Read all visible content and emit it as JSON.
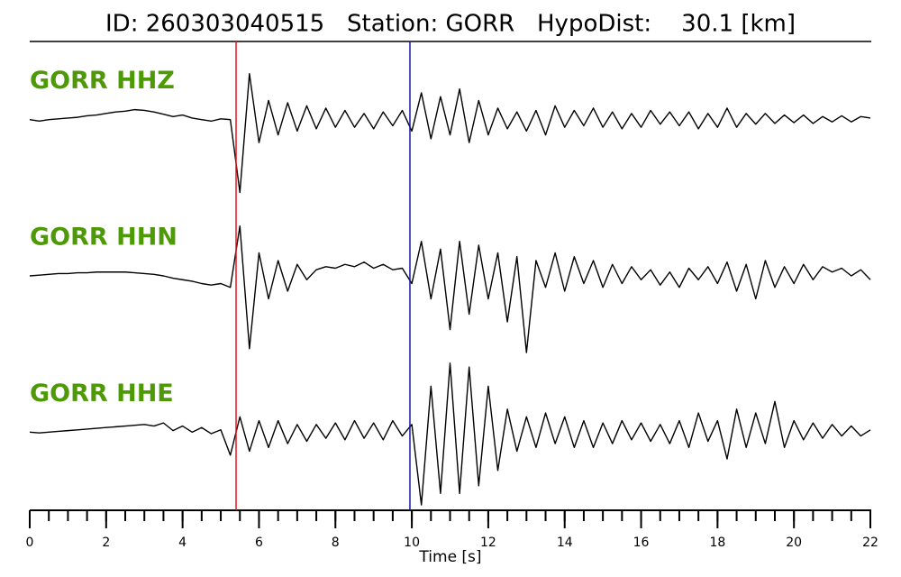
{
  "chart_data": {
    "type": "line",
    "title": "ID: 260303040515   Station: GORR   HypoDist:    30.1 [km]",
    "xlabel": "Time [s]",
    "x": [
      0,
      0.25,
      0.5,
      0.75,
      1,
      1.25,
      1.5,
      1.75,
      2,
      2.25,
      2.5,
      2.75,
      3,
      3.25,
      3.5,
      3.75,
      4,
      4.25,
      4.5,
      4.75,
      5,
      5.25,
      5.5,
      5.75,
      6,
      6.25,
      6.5,
      6.75,
      7,
      7.25,
      7.5,
      7.75,
      8,
      8.25,
      8.5,
      8.75,
      9,
      9.25,
      9.5,
      9.75,
      10,
      10.25,
      10.5,
      10.75,
      11,
      11.25,
      11.5,
      11.75,
      12,
      12.25,
      12.5,
      12.75,
      13,
      13.25,
      13.5,
      13.75,
      14,
      14.25,
      14.5,
      14.75,
      15,
      15.25,
      15.5,
      15.75,
      16,
      16.25,
      16.5,
      16.75,
      17,
      17.25,
      17.5,
      17.75,
      18,
      18.25,
      18.5,
      18.75,
      19,
      19.25,
      19.5,
      19.75,
      20,
      20.25,
      20.5,
      20.75,
      21,
      21.25,
      21.5,
      21.75,
      22
    ],
    "xlim": [
      0,
      22
    ],
    "xticks": [
      0,
      2,
      4,
      6,
      8,
      10,
      12,
      14,
      16,
      18,
      20,
      22
    ],
    "xminorticks": [
      0,
      0.5,
      1,
      1.5,
      2,
      2.5,
      3,
      3.5,
      4,
      4.5,
      5,
      5.5,
      6,
      6.5,
      7,
      7.5,
      8,
      8.5,
      9,
      9.5,
      10,
      10.5,
      11,
      11.5,
      12,
      12.5,
      13,
      13.5,
      14,
      14.5,
      15,
      15.5,
      16,
      16.5,
      17,
      17.5,
      18,
      18.5,
      19,
      19.5,
      20,
      20.5,
      21,
      21.5,
      22
    ],
    "ylim": [
      -1,
      1
    ],
    "label_color": "#4e9a06",
    "markers": [
      {
        "x": 5.4,
        "color": "#e8161b"
      },
      {
        "x": 9.95,
        "color": "#1a1aa8"
      }
    ],
    "series": [
      {
        "name": "GORR HHZ",
        "color": "#000000",
        "values": [
          0,
          -0.02,
          0,
          0.01,
          0.02,
          0.03,
          0.05,
          0.06,
          0.08,
          0.1,
          0.11,
          0.13,
          0.12,
          0.1,
          0.07,
          0.04,
          0.06,
          0.02,
          0,
          -0.02,
          0.01,
          0,
          -0.95,
          0.6,
          -0.3,
          0.25,
          -0.2,
          0.22,
          -0.15,
          0.18,
          -0.12,
          0.15,
          -0.1,
          0.12,
          -0.1,
          0.08,
          -0.12,
          0.1,
          -0.08,
          0.12,
          -0.15,
          0.35,
          -0.25,
          0.3,
          -0.2,
          0.4,
          -0.3,
          0.25,
          -0.2,
          0.15,
          -0.12,
          0.1,
          -0.15,
          0.12,
          -0.2,
          0.18,
          -0.1,
          0.12,
          -0.08,
          0.15,
          -0.1,
          0.1,
          -0.12,
          0.08,
          -0.1,
          0.12,
          -0.06,
          0.1,
          -0.08,
          0.1,
          -0.12,
          0.08,
          -0.1,
          0.15,
          -0.1,
          0.08,
          -0.06,
          0.08,
          -0.05,
          0.06,
          -0.04,
          0.06,
          -0.05,
          0.04,
          -0.03,
          0.05,
          -0.03,
          0.04,
          0.02
        ]
      },
      {
        "name": "GORR HHN",
        "color": "#000000",
        "values": [
          0,
          0.01,
          0.02,
          0.03,
          0.03,
          0.04,
          0.04,
          0.05,
          0.05,
          0.05,
          0.05,
          0.04,
          0.03,
          0.02,
          0,
          -0.03,
          -0.05,
          -0.07,
          -0.1,
          -0.12,
          -0.1,
          -0.15,
          0.65,
          -0.95,
          0.3,
          -0.3,
          0.2,
          -0.2,
          0.15,
          -0.05,
          0.08,
          0.12,
          0.1,
          0.15,
          0.12,
          0.18,
          0.1,
          0.15,
          0.08,
          0.1,
          -0.1,
          0.45,
          -0.3,
          0.35,
          -0.7,
          0.45,
          -0.5,
          0.4,
          -0.3,
          0.3,
          -0.6,
          0.25,
          -1.0,
          0.2,
          -0.15,
          0.3,
          -0.2,
          0.25,
          -0.1,
          0.2,
          -0.15,
          0.15,
          -0.1,
          0.12,
          -0.05,
          0.08,
          -0.12,
          0.05,
          -0.15,
          0.1,
          -0.05,
          0.12,
          -0.1,
          0.18,
          -0.2,
          0.15,
          -0.3,
          0.2,
          -0.15,
          0.12,
          -0.1,
          0.15,
          -0.05,
          0.12,
          0.05,
          0.1,
          0,
          0.08,
          -0.05
        ]
      },
      {
        "name": "GORR HHE",
        "color": "#000000",
        "values": [
          0,
          -0.01,
          0,
          0.01,
          0.02,
          0.03,
          0.04,
          0.05,
          0.06,
          0.07,
          0.08,
          0.09,
          0.1,
          0.08,
          0.12,
          0.02,
          0.08,
          0.0,
          0.06,
          -0.02,
          0.03,
          -0.3,
          0.2,
          -0.25,
          0.15,
          -0.2,
          0.15,
          -0.15,
          0.1,
          -0.12,
          0.1,
          -0.08,
          0.12,
          -0.1,
          0.15,
          -0.08,
          0.12,
          -0.1,
          0.15,
          -0.05,
          0.1,
          -0.95,
          0.6,
          -0.8,
          0.9,
          -0.8,
          0.85,
          -0.7,
          0.6,
          -0.5,
          0.3,
          -0.25,
          0.2,
          -0.2,
          0.25,
          -0.15,
          0.2,
          -0.2,
          0.15,
          -0.2,
          0.12,
          -0.15,
          0.15,
          -0.1,
          0.12,
          -0.12,
          0.1,
          -0.15,
          0.15,
          -0.2,
          0.25,
          -0.12,
          0.15,
          -0.35,
          0.3,
          -0.2,
          0.25,
          -0.15,
          0.4,
          -0.2,
          0.15,
          -0.1,
          0.12,
          -0.08,
          0.1,
          -0.05,
          0.08,
          -0.05,
          0.03
        ]
      }
    ]
  }
}
